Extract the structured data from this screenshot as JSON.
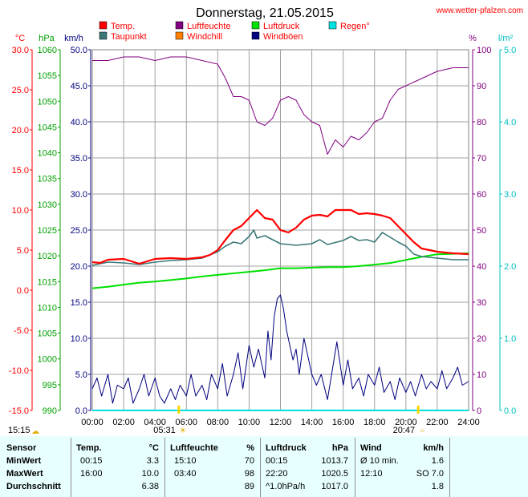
{
  "title": "Donnerstag, 21.05.2015",
  "source": "www.wetter-pfalzen.com",
  "colors": {
    "temp": "#ff0000",
    "dew": "#3c7878",
    "humidity": "#800080",
    "windchill": "#ff8000",
    "pressure": "#00e000",
    "gust": "#000080",
    "rain": "#00e0e0",
    "grid": "#808080"
  },
  "legend": [
    {
      "label": "Temp.",
      "color": "#ff0000"
    },
    {
      "label": "Taupunkt",
      "color": "#3c7878"
    },
    {
      "label": "Luftfeuchte",
      "color": "#800080"
    },
    {
      "label": "Windchill",
      "color": "#ff8000"
    },
    {
      "label": "Luftdruck",
      "color": "#00e000"
    },
    {
      "label": "Windböen",
      "color": "#000080"
    },
    {
      "label": "Regen°",
      "color": "#00e0e0"
    }
  ],
  "axis_units": {
    "temp": "°C",
    "pressure": "hPa",
    "wind": "km/h",
    "humidity": "%",
    "rain": "l/m²"
  },
  "chart_data": {
    "type": "line",
    "title": "Donnerstag, 21.05.2015",
    "x_ticks": [
      "00:00",
      "02:00",
      "04:00",
      "06:00",
      "08:00",
      "10:00",
      "12:00",
      "14:00",
      "16:00",
      "18:00",
      "20:00",
      "22:00",
      "24:00"
    ],
    "axes": {
      "temp": {
        "range": [
          -15,
          30
        ],
        "ticks": [
          "30.0",
          "25.0",
          "20.0",
          "15.0",
          "10.0",
          "5.0",
          "0.0",
          "-5.0",
          "-10.0",
          "-15.0"
        ]
      },
      "pressure": {
        "range": [
          990,
          1060
        ],
        "ticks": [
          "1060",
          "1055",
          "1050",
          "1045",
          "1040",
          "1035",
          "1030",
          "1025",
          "1020",
          "1015",
          "1010",
          "1005",
          "1000",
          "995",
          "990"
        ]
      },
      "wind": {
        "range": [
          0,
          50
        ],
        "ticks": [
          "50.0",
          "45.0",
          "40.0",
          "35.0",
          "30.0",
          "25.0",
          "20.0",
          "15.0",
          "10.0",
          "5.0",
          "0.0"
        ]
      },
      "humidity": {
        "range": [
          0,
          100
        ],
        "ticks": [
          "100",
          "90",
          "80",
          "70",
          "60",
          "50",
          "40",
          "30",
          "20",
          "10",
          "0"
        ]
      },
      "rain": {
        "range": [
          0,
          5
        ],
        "ticks": [
          "5.0",
          "4.0",
          "3.0",
          "2.0",
          "1.0",
          "0.0"
        ]
      }
    },
    "series": [
      {
        "name": "Temp.",
        "axis": "temp",
        "points": [
          [
            0,
            3.5
          ],
          [
            0.5,
            3.4
          ],
          [
            1,
            3.8
          ],
          [
            2,
            3.9
          ],
          [
            3,
            3.3
          ],
          [
            4,
            3.9
          ],
          [
            5,
            4.0
          ],
          [
            6,
            3.9
          ],
          [
            7,
            4.1
          ],
          [
            7.5,
            4.4
          ],
          [
            8,
            5.0
          ],
          [
            8.5,
            6.3
          ],
          [
            9,
            7.5
          ],
          [
            9.5,
            8.0
          ],
          [
            10,
            9.0
          ],
          [
            10.5,
            10.0
          ],
          [
            11,
            9.0
          ],
          [
            11.5,
            8.8
          ],
          [
            12,
            7.5
          ],
          [
            12.5,
            7.2
          ],
          [
            13,
            7.8
          ],
          [
            13.5,
            8.8
          ],
          [
            14,
            9.3
          ],
          [
            14.5,
            9.4
          ],
          [
            15,
            9.2
          ],
          [
            15.5,
            10.0
          ],
          [
            16,
            10.0
          ],
          [
            16.5,
            10.0
          ],
          [
            17,
            9.5
          ],
          [
            17.5,
            9.6
          ],
          [
            18,
            9.5
          ],
          [
            18.5,
            9.3
          ],
          [
            19,
            9.0
          ],
          [
            19.5,
            8.0
          ],
          [
            20,
            7.0
          ],
          [
            20.5,
            6.0
          ],
          [
            21,
            5.2
          ],
          [
            22,
            4.8
          ],
          [
            23,
            4.6
          ],
          [
            24,
            4.5
          ]
        ]
      },
      {
        "name": "Taupunkt",
        "axis": "temp",
        "points": [
          [
            0,
            3.1
          ],
          [
            1,
            3.5
          ],
          [
            2,
            3.4
          ],
          [
            3,
            3.2
          ],
          [
            4,
            3.5
          ],
          [
            5,
            3.7
          ],
          [
            6,
            3.8
          ],
          [
            7,
            4.0
          ],
          [
            8,
            4.8
          ],
          [
            8.5,
            5.5
          ],
          [
            9,
            6.0
          ],
          [
            9.5,
            5.8
          ],
          [
            10,
            6.7
          ],
          [
            10.3,
            7.5
          ],
          [
            10.5,
            6.5
          ],
          [
            11,
            6.8
          ],
          [
            11.5,
            6.3
          ],
          [
            12,
            5.8
          ],
          [
            13,
            5.6
          ],
          [
            14,
            5.8
          ],
          [
            14.5,
            6.3
          ],
          [
            15,
            5.7
          ],
          [
            16,
            6.2
          ],
          [
            16.5,
            6.7
          ],
          [
            17,
            6.2
          ],
          [
            17.5,
            6.3
          ],
          [
            18,
            6.0
          ],
          [
            18.5,
            7.2
          ],
          [
            19,
            6.6
          ],
          [
            19.5,
            6.0
          ],
          [
            20,
            5.5
          ],
          [
            20.5,
            4.5
          ],
          [
            21,
            4.2
          ],
          [
            22,
            4.0
          ],
          [
            23,
            3.8
          ],
          [
            24,
            3.8
          ]
        ]
      },
      {
        "name": "Luftfeuchte",
        "axis": "humidity",
        "points": [
          [
            0,
            97
          ],
          [
            1,
            97
          ],
          [
            2,
            98
          ],
          [
            3,
            98
          ],
          [
            4,
            97
          ],
          [
            5,
            98
          ],
          [
            6,
            98
          ],
          [
            7,
            97
          ],
          [
            8,
            96
          ],
          [
            8.5,
            92
          ],
          [
            9,
            87
          ],
          [
            9.5,
            87
          ],
          [
            10,
            86
          ],
          [
            10.5,
            80
          ],
          [
            11,
            79
          ],
          [
            11.5,
            81
          ],
          [
            12,
            86
          ],
          [
            12.5,
            87
          ],
          [
            13,
            86
          ],
          [
            13.5,
            82
          ],
          [
            14,
            80
          ],
          [
            14.5,
            79
          ],
          [
            15,
            71
          ],
          [
            15.5,
            75
          ],
          [
            16,
            73
          ],
          [
            16.5,
            76
          ],
          [
            17,
            75
          ],
          [
            17.5,
            77
          ],
          [
            18,
            80
          ],
          [
            18.5,
            81
          ],
          [
            19,
            86
          ],
          [
            19.5,
            89
          ],
          [
            20,
            90
          ],
          [
            20.5,
            91
          ],
          [
            21,
            92
          ],
          [
            21.5,
            93
          ],
          [
            22,
            94
          ],
          [
            23,
            95
          ],
          [
            24,
            95
          ]
        ]
      },
      {
        "name": "Luftdruck",
        "axis": "pressure",
        "points": [
          [
            0,
            1013.7
          ],
          [
            1,
            1014.0
          ],
          [
            2,
            1014.4
          ],
          [
            3,
            1014.8
          ],
          [
            4,
            1015.0
          ],
          [
            5,
            1015.3
          ],
          [
            6,
            1015.6
          ],
          [
            7,
            1016.0
          ],
          [
            8,
            1016.3
          ],
          [
            9,
            1016.6
          ],
          [
            10,
            1016.9
          ],
          [
            11,
            1017.2
          ],
          [
            12,
            1017.6
          ],
          [
            13,
            1017.6
          ],
          [
            14,
            1017.7
          ],
          [
            15,
            1017.8
          ],
          [
            16,
            1017.8
          ],
          [
            17,
            1018.0
          ],
          [
            18,
            1018.3
          ],
          [
            19,
            1018.6
          ],
          [
            20,
            1019.2
          ],
          [
            21,
            1019.8
          ],
          [
            22,
            1020.3
          ],
          [
            23,
            1020.4
          ],
          [
            24,
            1020.5
          ]
        ]
      },
      {
        "name": "Windböen",
        "axis": "wind",
        "points": [
          [
            0,
            3
          ],
          [
            0.3,
            4.5
          ],
          [
            0.6,
            2
          ],
          [
            1,
            5
          ],
          [
            1.3,
            1
          ],
          [
            1.6,
            3.5
          ],
          [
            2,
            3
          ],
          [
            2.3,
            4.5
          ],
          [
            2.6,
            1
          ],
          [
            3,
            3
          ],
          [
            3.3,
            5
          ],
          [
            3.6,
            2
          ],
          [
            4,
            4.5
          ],
          [
            4.3,
            2
          ],
          [
            4.6,
            1
          ],
          [
            5,
            3
          ],
          [
            5.3,
            1.5
          ],
          [
            5.6,
            3.5
          ],
          [
            6,
            2
          ],
          [
            6.3,
            5
          ],
          [
            6.6,
            2
          ],
          [
            7,
            3.5
          ],
          [
            7.3,
            1.5
          ],
          [
            7.6,
            5
          ],
          [
            8,
            3
          ],
          [
            8.3,
            6.5
          ],
          [
            8.6,
            2
          ],
          [
            9,
            5
          ],
          [
            9.3,
            8
          ],
          [
            9.6,
            3
          ],
          [
            10,
            9
          ],
          [
            10.3,
            6
          ],
          [
            10.6,
            8.5
          ],
          [
            11,
            4.5
          ],
          [
            11.2,
            11
          ],
          [
            11.4,
            7
          ],
          [
            11.6,
            13
          ],
          [
            11.8,
            15.5
          ],
          [
            12,
            16
          ],
          [
            12.2,
            14
          ],
          [
            12.4,
            11
          ],
          [
            12.6,
            9
          ],
          [
            12.8,
            7
          ],
          [
            13,
            8.5
          ],
          [
            13.2,
            5
          ],
          [
            13.5,
            10
          ],
          [
            13.8,
            7
          ],
          [
            14,
            5
          ],
          [
            14.3,
            3.5
          ],
          [
            14.6,
            5
          ],
          [
            15,
            1.5
          ],
          [
            15.3,
            5.5
          ],
          [
            15.6,
            9.5
          ],
          [
            16,
            3.5
          ],
          [
            16.3,
            7
          ],
          [
            16.6,
            3
          ],
          [
            17,
            4.5
          ],
          [
            17.3,
            2
          ],
          [
            17.6,
            5
          ],
          [
            18,
            3.5
          ],
          [
            18.3,
            6
          ],
          [
            18.6,
            2.5
          ],
          [
            19,
            4
          ],
          [
            19.3,
            1.5
          ],
          [
            19.6,
            4.5
          ],
          [
            20,
            2.5
          ],
          [
            20.3,
            4
          ],
          [
            20.6,
            2
          ],
          [
            21,
            5
          ],
          [
            21.3,
            3
          ],
          [
            21.6,
            4
          ],
          [
            22,
            3
          ],
          [
            22.3,
            5.5
          ],
          [
            22.6,
            3
          ],
          [
            23,
            4.5
          ],
          [
            23.3,
            6
          ],
          [
            23.6,
            3.5
          ],
          [
            24,
            4
          ]
        ]
      }
    ],
    "markers": {
      "sunrise": "05:31",
      "sunset": "20:47",
      "left_label": "15:15"
    }
  },
  "summary": {
    "headers": {
      "sensor": "Sensor",
      "temp": "Temp.",
      "temp_unit": "°C",
      "hum": "Luftfeuchte",
      "hum_unit": "%",
      "press": "Luftdruck",
      "press_unit": "hPa",
      "wind": "Wind",
      "wind_unit": "km/h"
    },
    "rows": [
      {
        "label": "MinWert",
        "temp_time": "00:15",
        "temp_val": "3.3",
        "hum_time": "15:10",
        "hum_val": "70",
        "press_time": "00:15",
        "press_val": "1013.7",
        "wind_time": "Ø 10 min.",
        "wind_val": "1.6"
      },
      {
        "label": "MaxWert",
        "temp_time": "16:00",
        "temp_val": "10.0",
        "hum_time": "03:40",
        "hum_val": "98",
        "press_time": "22:20",
        "press_val": "1020.5",
        "wind_time": "12:10",
        "wind_val": "SO 7.0"
      },
      {
        "label": "Durchschnitt",
        "temp_time": "",
        "temp_val": "6.38",
        "hum_time": "",
        "hum_val": "89",
        "press_time": "^1.0hPa/h",
        "press_val": "1017.0",
        "wind_time": "",
        "wind_val": "1.8"
      }
    ]
  }
}
